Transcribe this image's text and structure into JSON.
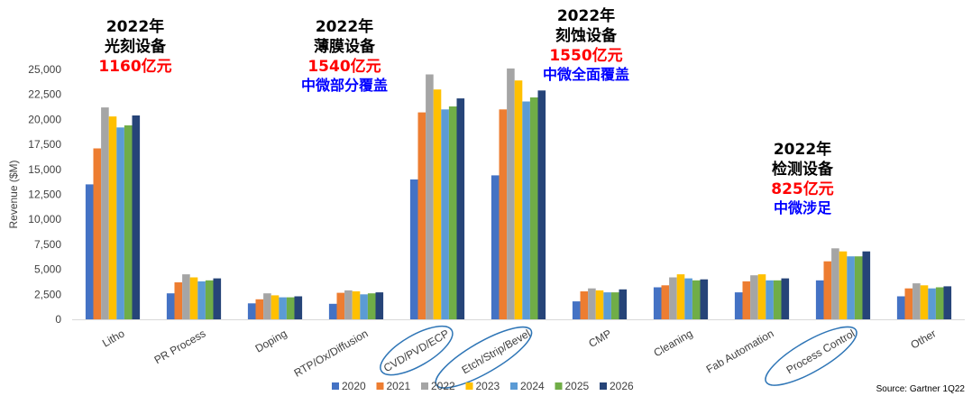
{
  "chart_data": {
    "type": "bar",
    "ylabel": "Revenue ($M)",
    "ylim": [
      0,
      25000
    ],
    "yticks": [
      "0",
      "2,500",
      "5,000",
      "7,500",
      "10,000",
      "12,500",
      "15,000",
      "17,500",
      "20,000",
      "22,500",
      "25,000"
    ],
    "categories": [
      "Litho",
      "PR Process",
      "Doping",
      "RTP/Ox/Diffusion",
      "CVD/PVD/ECP",
      "Etch/Strip/Bevel",
      "CMP",
      "Cleaning",
      "Fab Automation",
      "Process Control",
      "Other"
    ],
    "circled_categories": [
      "CVD/PVD/ECP",
      "Etch/Strip/Bevel",
      "Process Control"
    ],
    "legend_position": "bottom",
    "series": [
      {
        "name": "2020",
        "color": "#4472c4",
        "values": [
          13500,
          2600,
          1600,
          1550,
          14000,
          14400,
          1800,
          3200,
          2700,
          3900,
          2300
        ]
      },
      {
        "name": "2021",
        "color": "#ed7d31",
        "values": [
          17100,
          3700,
          2000,
          2650,
          20700,
          21000,
          2800,
          3400,
          3800,
          5800,
          3100
        ]
      },
      {
        "name": "2022",
        "color": "#a5a5a5",
        "values": [
          21200,
          4500,
          2600,
          2900,
          24500,
          25100,
          3100,
          4200,
          4400,
          7100,
          3600
        ]
      },
      {
        "name": "2023",
        "color": "#ffc000",
        "values": [
          20300,
          4200,
          2400,
          2800,
          23000,
          23900,
          2900,
          4500,
          4500,
          6800,
          3400
        ]
      },
      {
        "name": "2024",
        "color": "#5b9bd5",
        "values": [
          19200,
          3800,
          2200,
          2500,
          21000,
          21800,
          2700,
          4100,
          3900,
          6300,
          3100
        ]
      },
      {
        "name": "2025",
        "color": "#70ad47",
        "values": [
          19400,
          3900,
          2200,
          2600,
          21300,
          22200,
          2700,
          3900,
          3900,
          6300,
          3200
        ]
      },
      {
        "name": "2026",
        "color": "#264478",
        "values": [
          20400,
          4100,
          2300,
          2700,
          22100,
          22900,
          3000,
          4000,
          4100,
          6800,
          3300
        ]
      }
    ]
  },
  "annotations": {
    "litho": {
      "year": "2022年",
      "name": "光刻设备",
      "value": "1160亿元"
    },
    "film": {
      "year": "2022年",
      "name": "薄膜设备",
      "value": "1540亿元",
      "note": "中微部分覆盖"
    },
    "etch": {
      "year": "2022年",
      "name": "刻蚀设备",
      "value": "1550亿元",
      "note": "中微全面覆盖"
    },
    "inspection": {
      "year": "2022年",
      "name": "检测设备",
      "value": "825亿元",
      "note": "中微涉足"
    }
  },
  "source": "Source: Gartner 1Q22"
}
